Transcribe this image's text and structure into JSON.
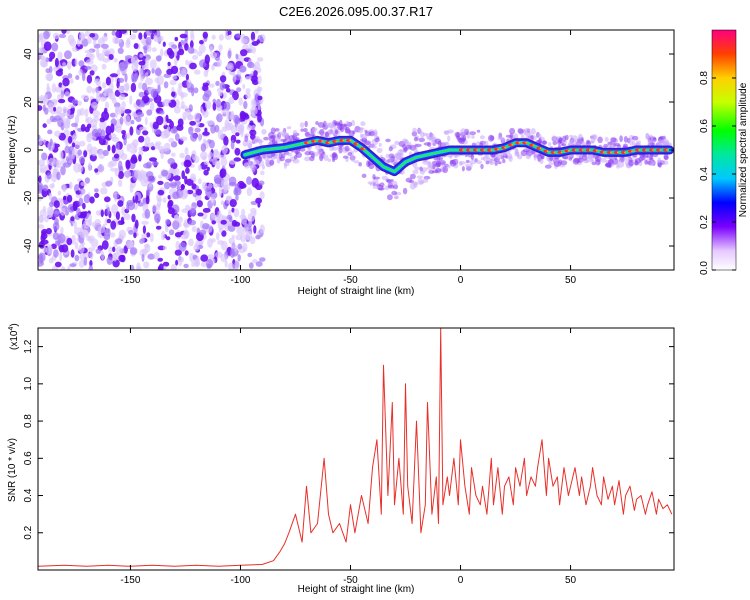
{
  "title": "C2E6.2026.095.00.37.R17",
  "colors": {
    "snr_line": "#e8302a",
    "spectrogram_noise": "#7a2cf0",
    "axes": "#000000",
    "background": "#ffffff"
  },
  "chart_data": [
    {
      "type": "heatmap",
      "xlabel": "Height of straight line (km)",
      "ylabel": "Frequency (Hz)",
      "xlim": [
        -192,
        97
      ],
      "ylim": [
        -50,
        50
      ],
      "xticks": [
        -150,
        -100,
        -50,
        0,
        50
      ],
      "yticks": [
        -40,
        -20,
        0,
        20,
        40
      ],
      "xtick_labels": [
        "-150",
        "-100",
        "-50",
        "0",
        "50"
      ],
      "ytick_labels": [
        "-40",
        "-20",
        "0",
        "20",
        "40"
      ],
      "noise_region_x": [
        -192,
        -90
      ],
      "signal_ridge": {
        "x": [
          -98,
          -90,
          -80,
          -70,
          -65,
          -60,
          -55,
          -50,
          -45,
          -40,
          -35,
          -30,
          -25,
          -20,
          -15,
          -10,
          -5,
          0,
          5,
          10,
          15,
          20,
          25,
          30,
          35,
          40,
          45,
          50,
          55,
          60,
          65,
          70,
          75,
          80,
          85,
          90,
          95
        ],
        "freq": [
          -2,
          0,
          1,
          3,
          4,
          3,
          4,
          4,
          1,
          -3,
          -7,
          -9,
          -5,
          -3,
          -2,
          -1,
          0,
          0,
          0,
          0,
          0,
          1,
          3,
          3,
          1,
          -1,
          -1,
          0,
          0,
          0,
          -1,
          -1,
          -1,
          0,
          0,
          0,
          0
        ]
      },
      "colorbar": {
        "label": "Normalized spectral amplitude",
        "range": [
          0,
          1
        ],
        "ticks": [
          "0.0",
          "0.2",
          "0.4",
          "0.6",
          "0.8"
        ],
        "tick_values": [
          0,
          0.2,
          0.4,
          0.6,
          0.8
        ]
      }
    },
    {
      "type": "line",
      "xlabel": "Height of straight line (km)",
      "ylabel": "SNR (10 * v/v)",
      "y_multiplier": "(x10",
      "y_multiplier_exp": "4",
      "y_multiplier_close": ")",
      "xlim": [
        -192,
        97
      ],
      "ylim": [
        0,
        1.3
      ],
      "xticks": [
        -150,
        -100,
        -50,
        0,
        50
      ],
      "yticks": [
        0.2,
        0.4,
        0.6,
        0.8,
        1.0,
        1.2
      ],
      "xtick_labels": [
        "-150",
        "-100",
        "-50",
        "0",
        "50"
      ],
      "ytick_labels": [
        "0.2",
        "0.4",
        "0.6",
        "0.8",
        "1.0",
        "1.2"
      ],
      "series": [
        {
          "x": [
            -192,
            -180,
            -170,
            -160,
            -150,
            -140,
            -130,
            -120,
            -110,
            -100,
            -90,
            -85,
            -82,
            -80,
            -78,
            -75,
            -72,
            -70,
            -68,
            -65,
            -62,
            -60,
            -58,
            -55,
            -52,
            -50,
            -48,
            -45,
            -42,
            -40,
            -38,
            -36,
            -35,
            -33,
            -31,
            -30,
            -28,
            -26,
            -25,
            -24,
            -22,
            -20,
            -18,
            -16,
            -15,
            -13,
            -11,
            -10,
            -9,
            -8,
            -6,
            -5,
            -3,
            -1,
            0,
            2,
            4,
            5,
            7,
            9,
            10,
            12,
            14,
            15,
            17,
            19,
            20,
            22,
            24,
            25,
            27,
            29,
            30,
            32,
            34,
            35,
            37,
            39,
            40,
            42,
            44,
            45,
            47,
            49,
            50,
            52,
            54,
            55,
            57,
            59,
            60,
            62,
            64,
            65,
            67,
            69,
            70,
            72,
            74,
            75,
            77,
            79,
            80,
            82,
            84,
            85,
            87,
            89,
            90,
            92,
            94,
            96
          ],
          "y": [
            0.02,
            0.025,
            0.02,
            0.025,
            0.02,
            0.025,
            0.02,
            0.025,
            0.02,
            0.025,
            0.03,
            0.05,
            0.1,
            0.14,
            0.2,
            0.3,
            0.15,
            0.45,
            0.2,
            0.25,
            0.6,
            0.3,
            0.2,
            0.25,
            0.15,
            0.35,
            0.2,
            0.4,
            0.25,
            0.55,
            0.7,
            0.3,
            1.1,
            0.4,
            0.9,
            0.35,
            0.6,
            0.3,
            1.0,
            0.45,
            0.25,
            0.8,
            0.2,
            0.35,
            0.9,
            0.3,
            0.5,
            0.25,
            1.3,
            0.35,
            0.5,
            0.4,
            0.6,
            0.35,
            0.7,
            0.45,
            0.3,
            0.55,
            0.4,
            0.35,
            0.45,
            0.3,
            0.6,
            0.35,
            0.55,
            0.3,
            0.45,
            0.5,
            0.35,
            0.55,
            0.45,
            0.6,
            0.4,
            0.5,
            0.45,
            0.55,
            0.7,
            0.4,
            0.6,
            0.45,
            0.5,
            0.35,
            0.55,
            0.4,
            0.45,
            0.55,
            0.4,
            0.5,
            0.35,
            0.45,
            0.55,
            0.4,
            0.35,
            0.5,
            0.38,
            0.45,
            0.35,
            0.48,
            0.3,
            0.4,
            0.45,
            0.32,
            0.38,
            0.4,
            0.3,
            0.35,
            0.42,
            0.3,
            0.38,
            0.33,
            0.35,
            0.3
          ]
        }
      ]
    }
  ]
}
